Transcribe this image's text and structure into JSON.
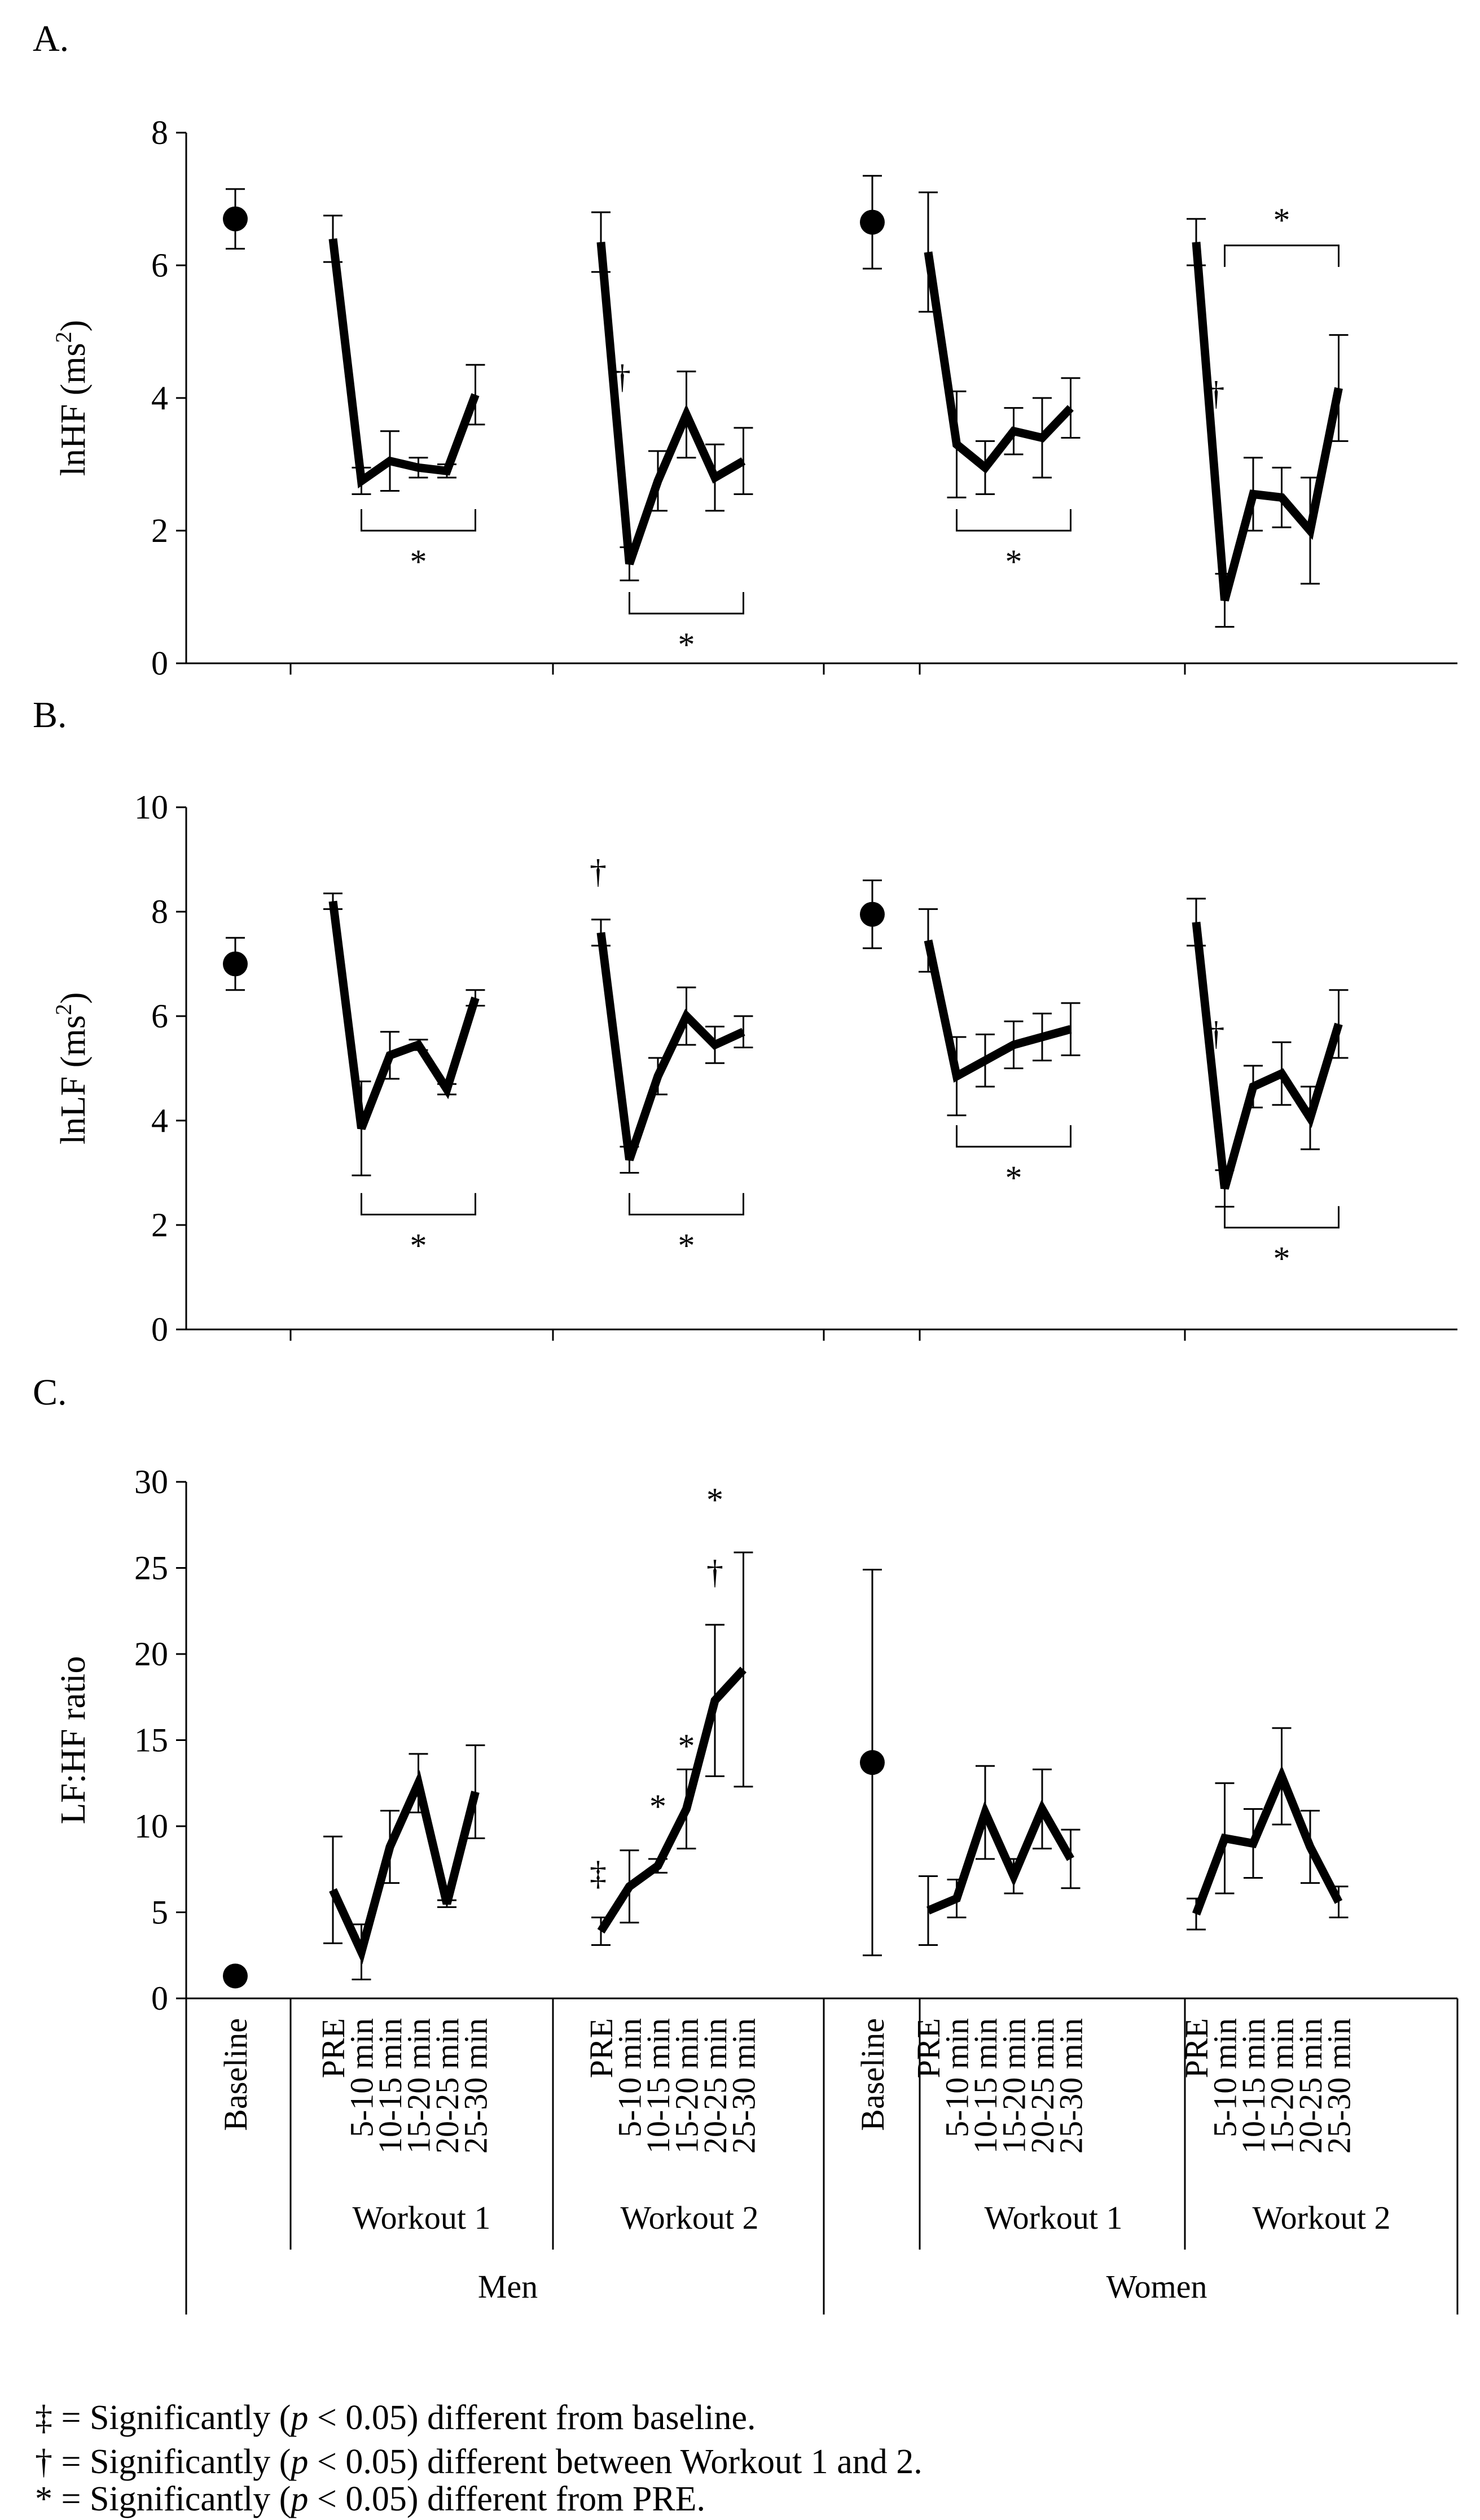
{
  "figure": {
    "footnotes": [
      {
        "symbol": "‡",
        "pre": "= Significantly (",
        "p": "p",
        "post": " < 0.05) different from baseline."
      },
      {
        "symbol": "†",
        "pre": "= Significantly (",
        "p": "p",
        "post": " < 0.05) different between Workout 1 and 2."
      },
      {
        "symbol": "*",
        "pre": "= Significantly (",
        "p": "p",
        "post": " < 0.05) different from PRE."
      }
    ],
    "x_axis": {
      "baseline_label": "Baseline",
      "time_labels": [
        "PRE",
        "5-10 min",
        "10-15 min",
        "15-20 min",
        "20-25 min",
        "25-30 min"
      ],
      "workout_labels": [
        "Workout 1",
        "Workout 2"
      ],
      "group_labels": [
        "Men",
        "Women"
      ]
    }
  },
  "chart_data": [
    {
      "type": "line",
      "panel_label": "A.",
      "ylabel": "lnHF (ms²)",
      "ylabel_base": "lnHF (ms",
      "ylabel_sup": "2",
      "ylabel_close": ")",
      "ylim": [
        0,
        8
      ],
      "yticks": [
        0,
        2,
        4,
        6,
        8
      ],
      "baselines": {
        "men": {
          "value": 6.7,
          "err": 0.45
        },
        "women": {
          "value": 6.65,
          "err": 0.7
        }
      },
      "series": [
        {
          "name": "Men Workout 1",
          "values": [
            6.4,
            2.75,
            3.05,
            2.95,
            2.9,
            4.05
          ],
          "errors": [
            0.35,
            0.2,
            0.45,
            0.15,
            0.1,
            0.45
          ]
        },
        {
          "name": "Men Workout 2",
          "values": [
            6.35,
            1.5,
            2.75,
            3.75,
            2.8,
            3.05
          ],
          "errors": [
            0.45,
            0.25,
            0.45,
            0.65,
            0.5,
            0.5
          ]
        },
        {
          "name": "Women Workout 1",
          "values": [
            6.2,
            3.3,
            2.95,
            3.5,
            3.4,
            3.85
          ],
          "errors": [
            0.9,
            0.8,
            0.4,
            0.35,
            0.6,
            0.45
          ]
        },
        {
          "name": "Women Workout 2",
          "values": [
            6.35,
            0.95,
            2.55,
            2.5,
            2.0,
            4.15
          ],
          "errors": [
            0.35,
            0.4,
            0.55,
            0.45,
            0.8,
            0.8
          ]
        }
      ],
      "annotations": [
        {
          "text": "*",
          "kind": "bracket",
          "group": 0,
          "from": 1,
          "to": 5,
          "y": 2.0,
          "dir": "down"
        },
        {
          "text": "†",
          "kind": "mark",
          "group": 1,
          "idx": 0.75,
          "y": 4.15
        },
        {
          "text": "*",
          "kind": "bracket",
          "group": 1,
          "from": 1,
          "to": 5,
          "y": 0.75,
          "dir": "down"
        },
        {
          "text": "*",
          "kind": "bracket",
          "group": 2,
          "from": 1,
          "to": 5,
          "y": 2.0,
          "dir": "down"
        },
        {
          "text": "*",
          "kind": "bracket",
          "group": 3,
          "from": 1,
          "to": 5,
          "y": 6.3,
          "dir": "up"
        },
        {
          "text": "†",
          "kind": "mark",
          "group": 3,
          "idx": 0.7,
          "y": 3.9
        }
      ]
    },
    {
      "type": "line",
      "panel_label": "B.",
      "ylabel": "lnLF (ms²)",
      "ylabel_base": "lnLF (ms",
      "ylabel_sup": "2",
      "ylabel_close": ")",
      "ylim": [
        0,
        10
      ],
      "yticks": [
        0,
        2,
        4,
        6,
        8,
        10
      ],
      "baselines": {
        "men": {
          "value": 7.0,
          "err": 0.5
        },
        "women": {
          "value": 7.95,
          "err": 0.65
        }
      },
      "series": [
        {
          "name": "Men Workout 1",
          "values": [
            8.2,
            3.85,
            5.25,
            5.45,
            4.6,
            6.35
          ],
          "errors": [
            0.15,
            0.9,
            0.45,
            0.1,
            0.1,
            0.15
          ]
        },
        {
          "name": "Men Workout 2",
          "values": [
            7.6,
            3.25,
            4.85,
            6.0,
            5.45,
            5.7
          ],
          "errors": [
            0.25,
            0.25,
            0.35,
            0.55,
            0.35,
            0.3
          ]
        },
        {
          "name": "Women Workout 1",
          "values": [
            7.45,
            4.85,
            5.15,
            5.45,
            5.6,
            5.75
          ],
          "errors": [
            0.6,
            0.75,
            0.5,
            0.45,
            0.45,
            0.5
          ]
        },
        {
          "name": "Women Workout 2",
          "values": [
            7.8,
            2.7,
            4.65,
            4.9,
            4.05,
            5.85
          ],
          "errors": [
            0.45,
            0.35,
            0.4,
            0.6,
            0.6,
            0.65
          ]
        }
      ],
      "annotations": [
        {
          "text": "*",
          "kind": "bracket",
          "group": 0,
          "from": 1,
          "to": 5,
          "y": 2.2,
          "dir": "down"
        },
        {
          "text": "†",
          "kind": "mark",
          "group": 1,
          "idx": -0.1,
          "y": 8.55
        },
        {
          "text": "*",
          "kind": "bracket",
          "group": 1,
          "from": 1,
          "to": 5,
          "y": 2.2,
          "dir": "down"
        },
        {
          "text": "*",
          "kind": "bracket",
          "group": 2,
          "from": 1,
          "to": 5,
          "y": 3.5,
          "dir": "down"
        },
        {
          "text": "*",
          "kind": "bracket",
          "group": 3,
          "from": 1,
          "to": 5,
          "y": 1.95,
          "dir": "down"
        },
        {
          "text": "†",
          "kind": "mark",
          "group": 3,
          "idx": 0.7,
          "y": 5.45
        }
      ]
    },
    {
      "type": "line",
      "panel_label": "C.",
      "ylabel": "LF:HF ratio",
      "ylabel_base": "LF:HF ratio",
      "ylabel_sup": "",
      "ylabel_close": "",
      "ylim": [
        0,
        30
      ],
      "yticks": [
        0,
        5,
        10,
        15,
        20,
        25,
        30
      ],
      "baselines": {
        "men": {
          "value": 1.3,
          "err": 0
        },
        "women": {
          "value": 13.7,
          "err": 11.2
        }
      },
      "series": [
        {
          "name": "Men Workout 1",
          "values": [
            6.3,
            2.7,
            8.8,
            12.5,
            5.5,
            12.0
          ],
          "errors": [
            3.1,
            1.6,
            2.1,
            1.7,
            0.2,
            2.7
          ]
        },
        {
          "name": "Men Workout 2",
          "values": [
            3.9,
            6.5,
            7.7,
            11.0,
            17.3,
            19.1
          ],
          "errors": [
            0.8,
            2.1,
            0.4,
            2.3,
            4.4,
            6.8
          ]
        },
        {
          "name": "Women Workout 1",
          "values": [
            5.1,
            5.8,
            10.8,
            7.1,
            11.0,
            8.1
          ],
          "errors": [
            2.0,
            1.1,
            2.7,
            1.0,
            2.3,
            1.7
          ]
        },
        {
          "name": "Women Workout 2",
          "values": [
            4.9,
            9.3,
            9.0,
            12.9,
            8.8,
            5.6
          ],
          "errors": [
            0.9,
            3.2,
            2.0,
            2.8,
            2.1,
            0.9
          ]
        }
      ],
      "annotations": [
        {
          "text": "‡",
          "kind": "mark",
          "group": 1,
          "idx": -0.1,
          "y": 6.6
        },
        {
          "text": "*",
          "kind": "mark",
          "group": 1,
          "idx": 2.0,
          "y": 10.5
        },
        {
          "text": "*",
          "kind": "mark",
          "group": 1,
          "idx": 3.0,
          "y": 14.0
        },
        {
          "text": "†",
          "kind": "mark",
          "group": 1,
          "idx": 4.0,
          "y": 24.1
        },
        {
          "text": "*",
          "kind": "mark",
          "group": 1,
          "idx": 4.0,
          "y": 28.3
        }
      ]
    }
  ]
}
